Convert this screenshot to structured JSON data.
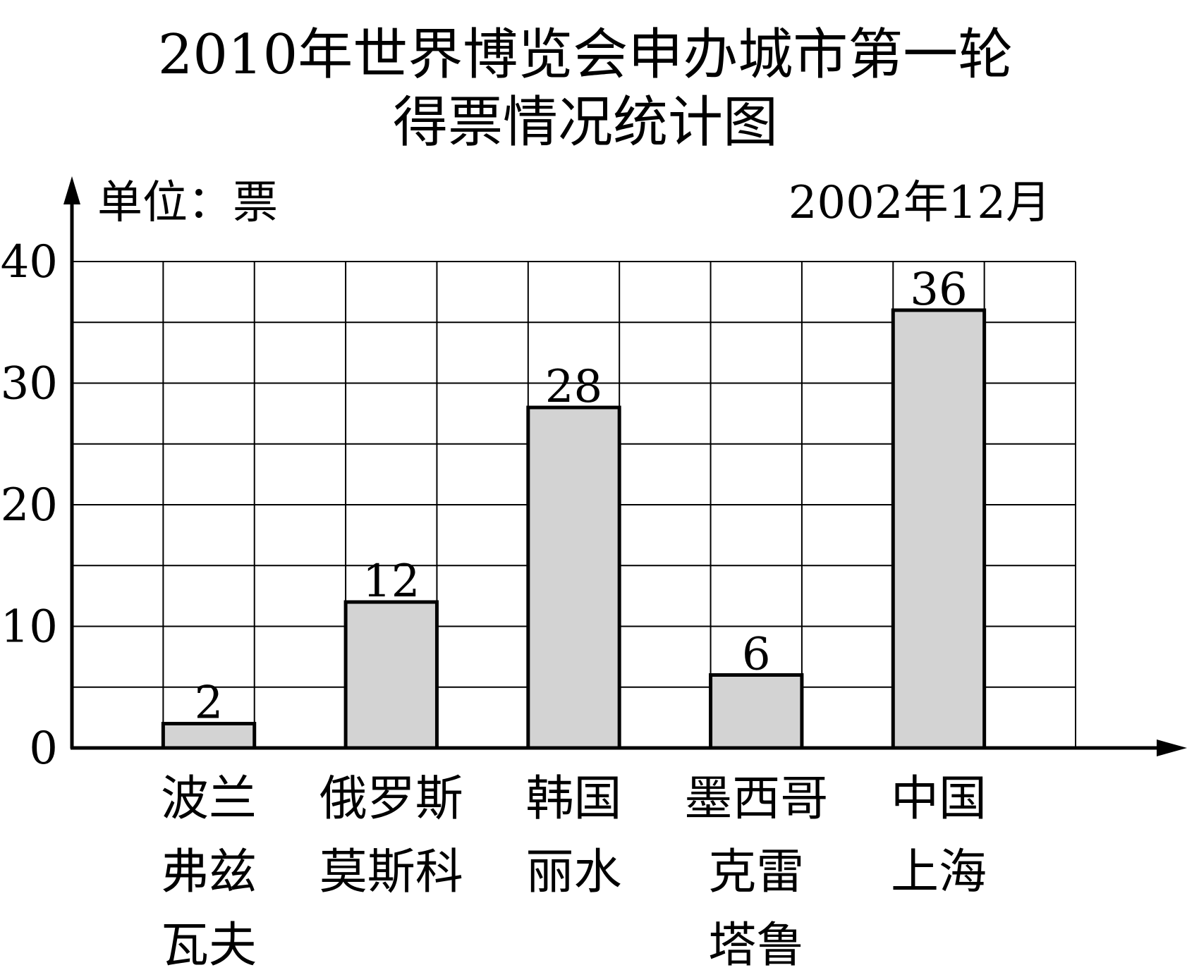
{
  "chart_data": {
    "type": "bar",
    "title_lines": [
      "2010年世界博览会申办城市第一轮",
      "得票情况统计图"
    ],
    "unit_label": "单位：票",
    "date_label": "2002年12月",
    "categories": [
      [
        "波兰",
        "弗兹",
        "瓦夫"
      ],
      [
        "俄罗斯",
        "莫斯科"
      ],
      [
        "韩国",
        "丽水"
      ],
      [
        "墨西哥",
        "克雷",
        "塔鲁"
      ],
      [
        "中国",
        "上海"
      ]
    ],
    "values": [
      2,
      12,
      28,
      6,
      36
    ],
    "data_labels": [
      "2",
      "12",
      "28",
      "6",
      "36"
    ],
    "ylim": [
      0,
      40
    ],
    "yticks": [
      "0",
      "10",
      "20",
      "30",
      "40"
    ],
    "grid": true,
    "bar_color": "#d3d3d3"
  }
}
